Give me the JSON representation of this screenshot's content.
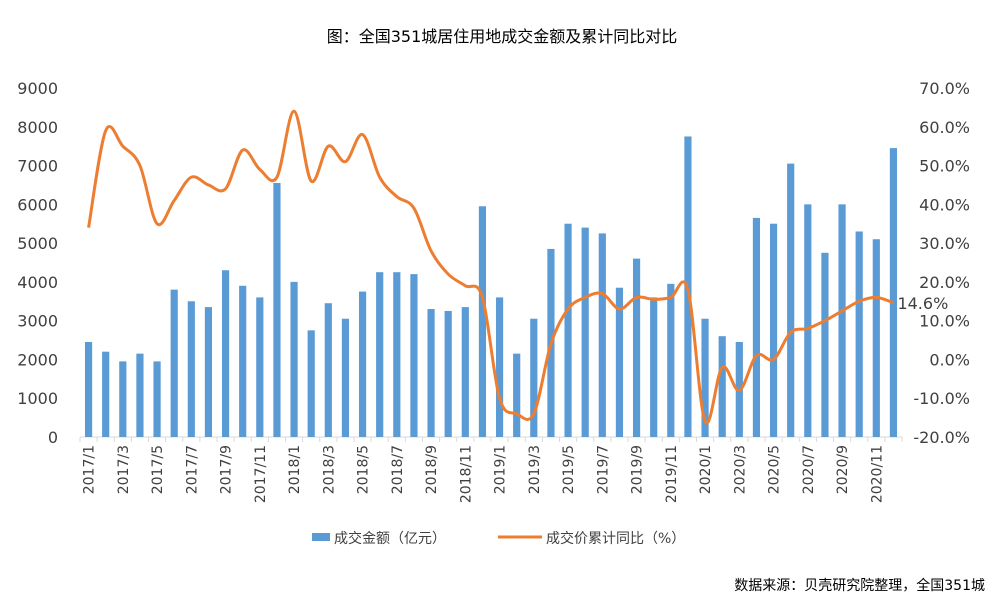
{
  "chart_data": {
    "type": "bar+line",
    "title": "图：全国351城居住用地成交金额及累计同比对比",
    "source": "数据来源：贝壳研究院整理，全国351城",
    "categories": [
      "2017/1",
      "2017/2",
      "2017/3",
      "2017/4",
      "2017/5",
      "2017/6",
      "2017/7",
      "2017/8",
      "2017/9",
      "2017/10",
      "2017/11",
      "2017/12",
      "2018/1",
      "2018/2",
      "2018/3",
      "2018/4",
      "2018/5",
      "2018/6",
      "2018/7",
      "2018/8",
      "2018/9",
      "2018/10",
      "2018/11",
      "2018/12",
      "2019/1",
      "2019/2",
      "2019/3",
      "2019/4",
      "2019/5",
      "2019/6",
      "2019/7",
      "2019/8",
      "2019/9",
      "2019/10",
      "2019/11",
      "2019/12",
      "2020/1",
      "2020/2",
      "2020/3",
      "2020/4",
      "2020/5",
      "2020/6",
      "2020/7",
      "2020/8",
      "2020/9",
      "2020/10",
      "2020/11",
      "2020/12"
    ],
    "series": [
      {
        "name": "成交金额（亿元）",
        "type": "bar",
        "axis": "left",
        "color": "#5b9bd5",
        "values": [
          2450,
          2200,
          1950,
          2150,
          1950,
          3800,
          3500,
          3350,
          4300,
          3900,
          3600,
          6550,
          4000,
          2750,
          3450,
          3050,
          3750,
          4250,
          4250,
          4200,
          3300,
          3250,
          3350,
          5950,
          3600,
          2150,
          3050,
          4850,
          5500,
          5400,
          5250,
          3850,
          4600,
          3600,
          3950,
          7750,
          3050,
          2600,
          2450,
          5650,
          5500,
          7050,
          6000,
          4750,
          6000,
          5300,
          5100,
          7450
        ]
      },
      {
        "name": "成交价累计同比（%）",
        "type": "line",
        "axis": "right",
        "color": "#ed7d31",
        "values": [
          34,
          59,
          55,
          50,
          35,
          41,
          47,
          45,
          44,
          54,
          49,
          47,
          64,
          46,
          55,
          51,
          58,
          47,
          42,
          39,
          28,
          22,
          19,
          16,
          -10,
          -14,
          -14,
          4,
          13,
          16,
          17,
          13,
          16,
          15.5,
          16,
          18,
          -16,
          -2,
          -8,
          1,
          0,
          7,
          8,
          10,
          12.5,
          15,
          16,
          14.6
        ]
      }
    ],
    "left_axis": {
      "min": 0,
      "max": 9000,
      "ticks": [
        "0",
        "1000",
        "2000",
        "3000",
        "4000",
        "5000",
        "6000",
        "7000",
        "8000",
        "9000"
      ]
    },
    "right_axis": {
      "min": -20,
      "max": 70,
      "ticks": [
        "-20.0%",
        "-10.0%",
        "0.0%",
        "10.0%",
        "20.0%",
        "30.0%",
        "40.0%",
        "50.0%",
        "60.0%",
        "70.0%"
      ]
    },
    "end_label": "14.6%",
    "legend_position": "bottom",
    "grid": false
  }
}
